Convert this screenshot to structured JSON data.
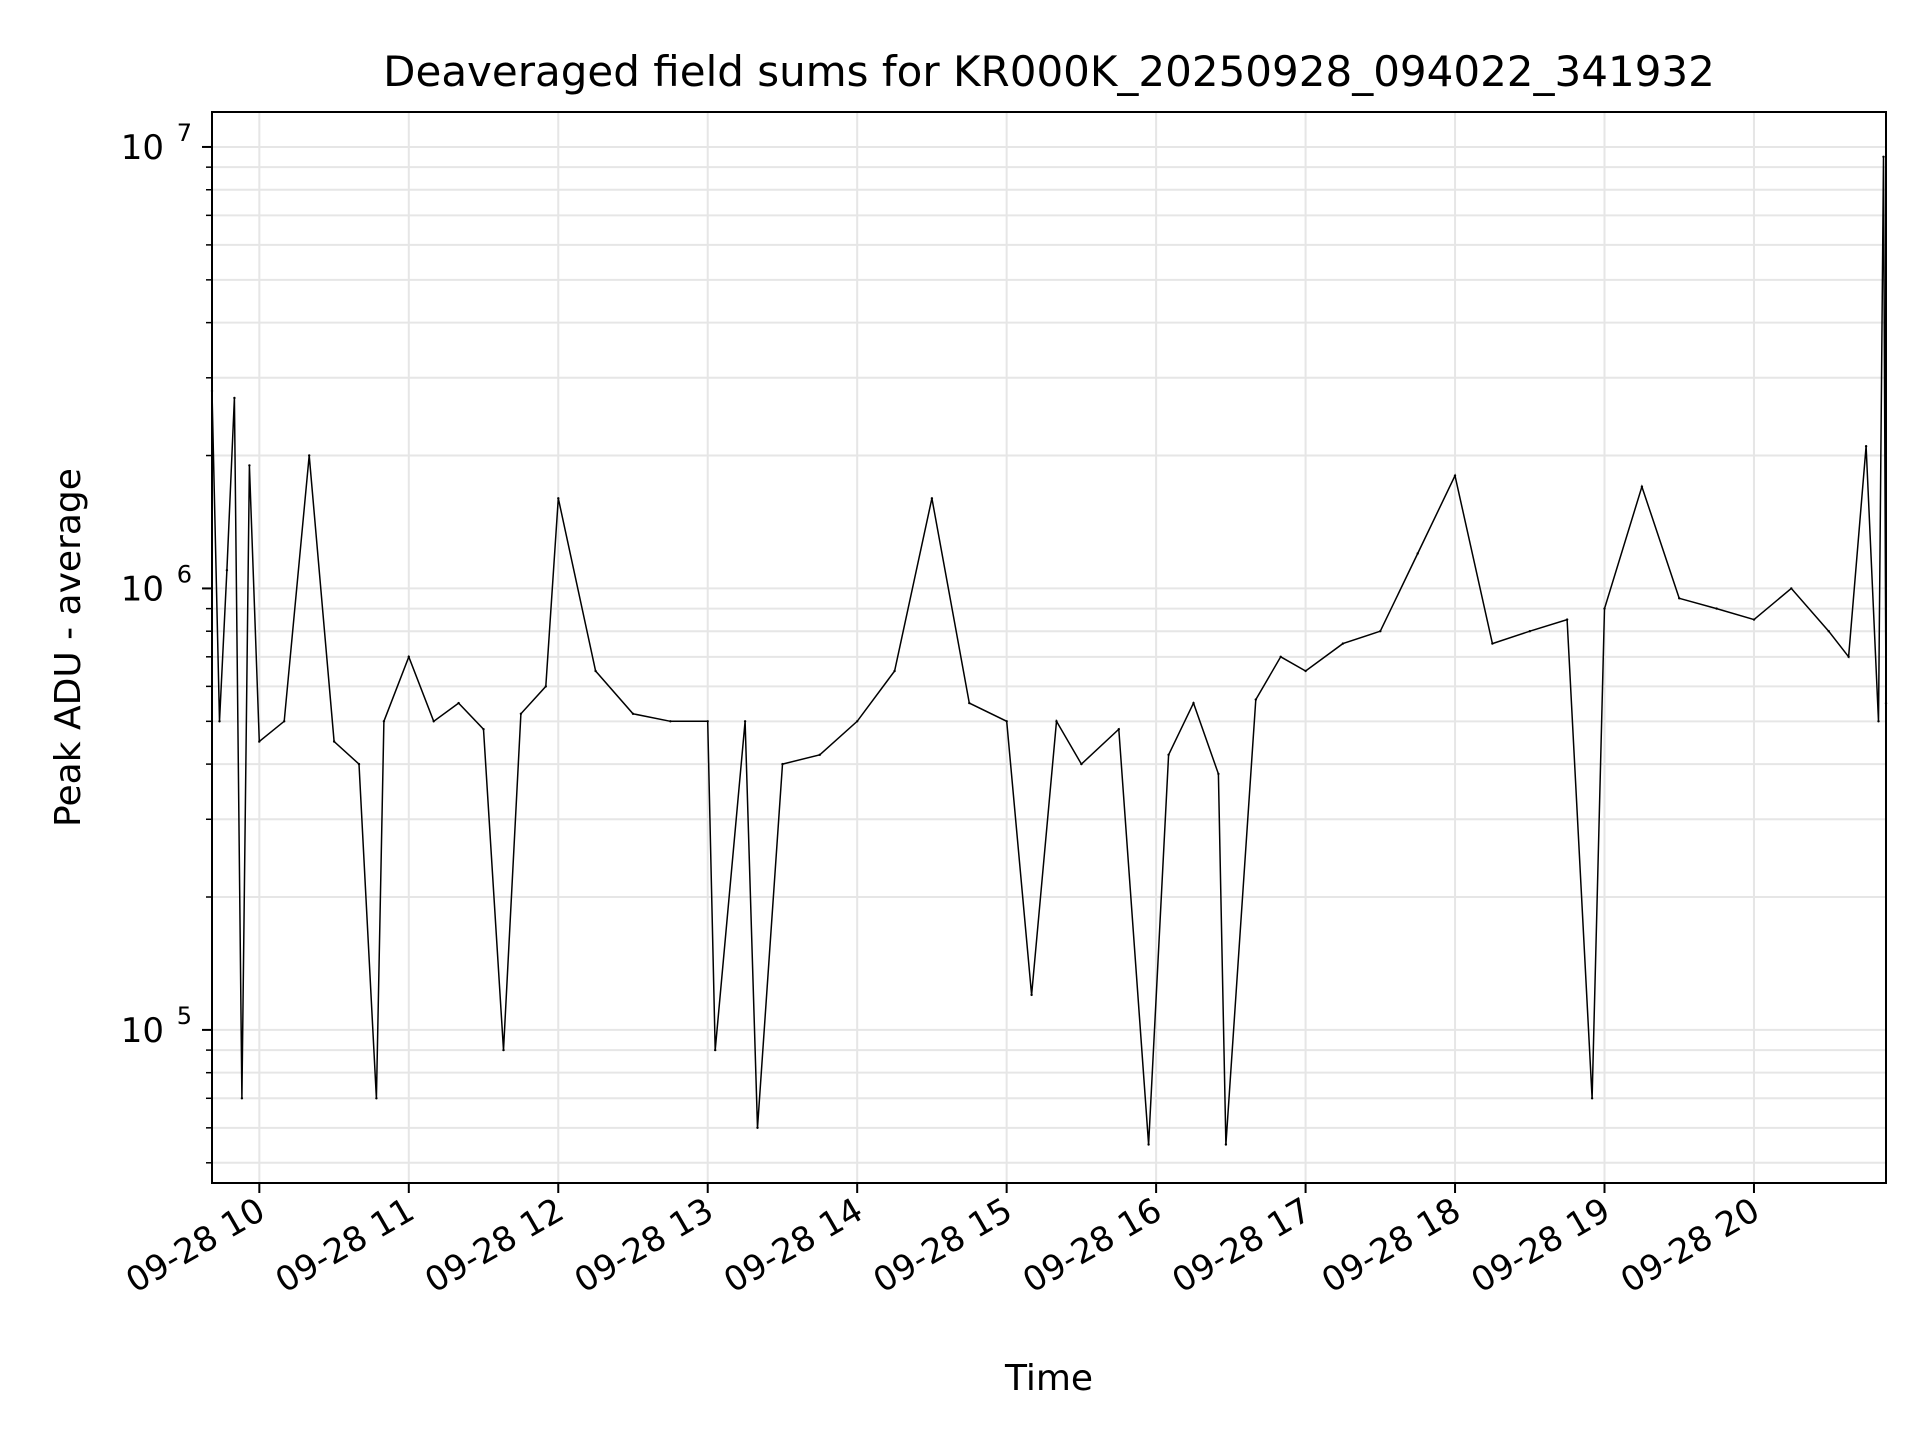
{
  "chart_data": {
    "type": "line",
    "title": "Deaveraged field sums for KR000K_20250928_094022_341932",
    "xlabel": "Time",
    "ylabel": "Peak ADU - average",
    "yscale": "log",
    "ylim": [
      45000,
      12000000
    ],
    "xlim": [
      "2025-09-28 09:41",
      "2025-09-28 20:53"
    ],
    "grid": true,
    "line_color": "#000000",
    "grid_color": "#e6e6e6",
    "x_ticks": [
      {
        "value": "2025-09-28 10:00",
        "label": "09-28 10"
      },
      {
        "value": "2025-09-28 11:00",
        "label": "09-28 11"
      },
      {
        "value": "2025-09-28 12:00",
        "label": "09-28 12"
      },
      {
        "value": "2025-09-28 13:00",
        "label": "09-28 13"
      },
      {
        "value": "2025-09-28 14:00",
        "label": "09-28 14"
      },
      {
        "value": "2025-09-28 15:00",
        "label": "09-28 15"
      },
      {
        "value": "2025-09-28 16:00",
        "label": "09-28 16"
      },
      {
        "value": "2025-09-28 17:00",
        "label": "09-28 17"
      },
      {
        "value": "2025-09-28 18:00",
        "label": "09-28 18"
      },
      {
        "value": "2025-09-28 19:00",
        "label": "09-28 19"
      },
      {
        "value": "2025-09-28 20:00",
        "label": "09-28 20"
      }
    ],
    "y_ticks": [
      {
        "value": 100000,
        "base": "10",
        "exponent": "5"
      },
      {
        "value": 1000000,
        "base": "10",
        "exponent": "6"
      },
      {
        "value": 10000000,
        "base": "10",
        "exponent": "7"
      }
    ],
    "series": [
      {
        "x": [
          "2025-09-28 09:41",
          "2025-09-28 09:44",
          "2025-09-28 09:47",
          "2025-09-28 09:50",
          "2025-09-28 09:53",
          "2025-09-28 09:56",
          "2025-09-28 10:00",
          "2025-09-28 10:10",
          "2025-09-28 10:20",
          "2025-09-28 10:30",
          "2025-09-28 10:40",
          "2025-09-28 10:47",
          "2025-09-28 10:50",
          "2025-09-28 11:00",
          "2025-09-28 11:10",
          "2025-09-28 11:20",
          "2025-09-28 11:30",
          "2025-09-28 11:38",
          "2025-09-28 11:45",
          "2025-09-28 11:55",
          "2025-09-28 12:00",
          "2025-09-28 12:15",
          "2025-09-28 12:30",
          "2025-09-28 12:45",
          "2025-09-28 13:00",
          "2025-09-28 13:03",
          "2025-09-28 13:15",
          "2025-09-28 13:20",
          "2025-09-28 13:30",
          "2025-09-28 13:45",
          "2025-09-28 14:00",
          "2025-09-28 14:15",
          "2025-09-28 14:30",
          "2025-09-28 14:45",
          "2025-09-28 15:00",
          "2025-09-28 15:10",
          "2025-09-28 15:20",
          "2025-09-28 15:30",
          "2025-09-28 15:45",
          "2025-09-28 15:57",
          "2025-09-28 16:05",
          "2025-09-28 16:15",
          "2025-09-28 16:25",
          "2025-09-28 16:28",
          "2025-09-28 16:40",
          "2025-09-28 16:50",
          "2025-09-28 17:00",
          "2025-09-28 17:15",
          "2025-09-28 17:30",
          "2025-09-28 17:45",
          "2025-09-28 18:00",
          "2025-09-28 18:15",
          "2025-09-28 18:30",
          "2025-09-28 18:45",
          "2025-09-28 18:55",
          "2025-09-28 19:00",
          "2025-09-28 19:15",
          "2025-09-28 19:30",
          "2025-09-28 19:45",
          "2025-09-28 20:00",
          "2025-09-28 20:15",
          "2025-09-28 20:30",
          "2025-09-28 20:38",
          "2025-09-28 20:45",
          "2025-09-28 20:50",
          "2025-09-28 20:52",
          "2025-09-28 20:53"
        ],
        "y": [
          2800000,
          500000,
          1100000,
          2700000,
          70000,
          1900000,
          450000,
          500000,
          2000000,
          450000,
          400000,
          70000,
          500000,
          700000,
          500000,
          550000,
          480000,
          90000,
          520000,
          600000,
          1600000,
          650000,
          520000,
          500000,
          500000,
          90000,
          500000,
          60000,
          400000,
          420000,
          500000,
          650000,
          1600000,
          550000,
          500000,
          120000,
          500000,
          400000,
          480000,
          55000,
          420000,
          550000,
          380000,
          55000,
          560000,
          700000,
          650000,
          750000,
          800000,
          1200000,
          1800000,
          750000,
          800000,
          850000,
          70000,
          900000,
          1700000,
          950000,
          900000,
          850000,
          1000000,
          800000,
          700000,
          2100000,
          500000,
          9500000,
          550000
        ]
      }
    ]
  }
}
